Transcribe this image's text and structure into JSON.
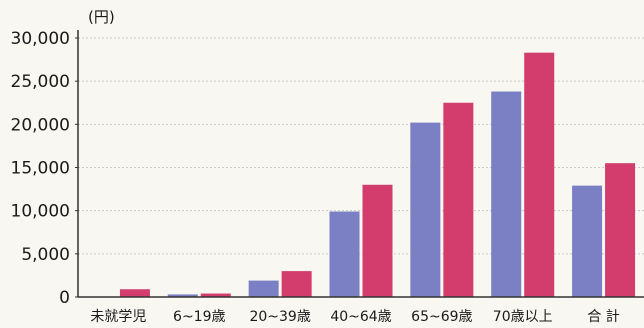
{
  "chart_data": {
    "type": "bar",
    "ylabel": "(円)",
    "ylim": [
      0,
      30000
    ],
    "yticks": [
      "30,000",
      "25,000",
      "20,000",
      "15,000",
      "10,000",
      "5,000",
      "0"
    ],
    "ytick_values": [
      30000,
      25000,
      20000,
      15000,
      10000,
      5000,
      0
    ],
    "categories": [
      "未就学児",
      "6~19歳",
      "20~39歳",
      "40~64歳",
      "65~69歳",
      "70歳以上",
      "合 計"
    ],
    "series": [
      {
        "values": [
          0,
          300,
          1900,
          9900,
          20200,
          23800,
          12900
        ]
      },
      {
        "values": [
          900,
          400,
          3000,
          13000,
          22500,
          28300,
          15500
        ]
      }
    ],
    "grid": true
  },
  "colors": {
    "series": [
      "#7b7fc3",
      "#d23d6e"
    ],
    "grid": "#c9c9c9",
    "axis": "#333333",
    "background": "#f8f7f2"
  }
}
